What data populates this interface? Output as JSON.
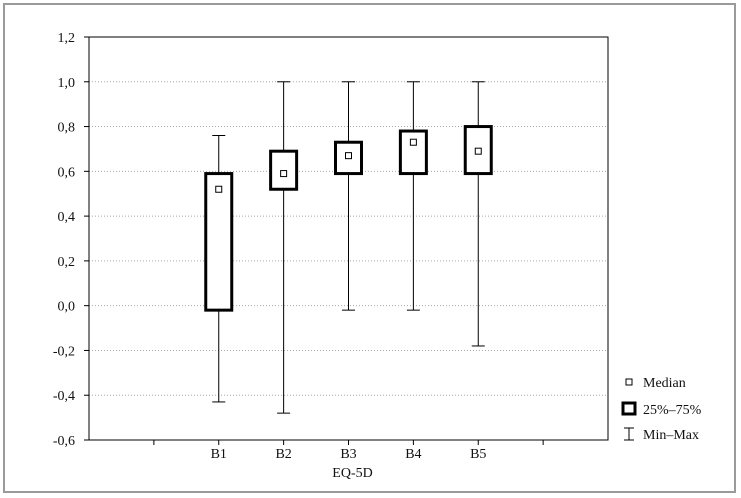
{
  "chart_data": {
    "type": "box",
    "xlabel": "EQ-5D",
    "ylabel": "",
    "title": "",
    "ylim": [
      -0.6,
      1.2
    ],
    "yticks": [
      -0.6,
      -0.4,
      -0.2,
      0.0,
      0.2,
      0.4,
      0.6,
      0.8,
      1.0,
      1.2
    ],
    "ytick_labels": [
      "-0,6",
      "-0,4",
      "-0,2",
      "0,0",
      "0,2",
      "0,4",
      "0,6",
      "0,8",
      "1,0",
      "1,2"
    ],
    "grid": true,
    "legend_position": "right",
    "categories": [
      "B1",
      "B2",
      "B3",
      "B4",
      "B5"
    ],
    "series": [
      {
        "category": "B1",
        "min": -0.43,
        "q1": -0.02,
        "median": 0.52,
        "q3": 0.59,
        "max": 0.76
      },
      {
        "category": "B2",
        "min": -0.48,
        "q1": 0.52,
        "median": 0.59,
        "q3": 0.69,
        "max": 1.0
      },
      {
        "category": "B3",
        "min": -0.02,
        "q1": 0.59,
        "median": 0.67,
        "q3": 0.73,
        "max": 1.0
      },
      {
        "category": "B4",
        "min": -0.02,
        "q1": 0.59,
        "median": 0.73,
        "q3": 0.78,
        "max": 1.0
      },
      {
        "category": "B5",
        "min": -0.18,
        "q1": 0.59,
        "median": 0.69,
        "q3": 0.8,
        "max": 1.0
      }
    ],
    "legend": [
      {
        "key": "median",
        "label": "Median"
      },
      {
        "key": "box",
        "label": "25%–75%"
      },
      {
        "key": "whisker",
        "label": "Min–Max"
      }
    ]
  }
}
